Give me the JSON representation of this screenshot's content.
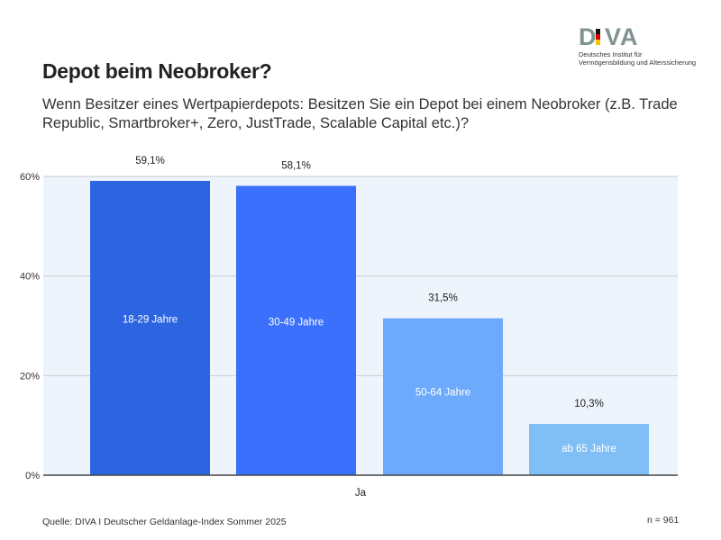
{
  "header": {
    "title": "Depot beim Neobroker?",
    "subtitle": "Wenn Besitzer eines Wertpapierdepots: Besitzen Sie ein Depot bei einem Neobroker (z.B. Trade Republic, Smartbroker+, Zero, JustTrade, Scalable Capital etc.)?"
  },
  "logo": {
    "word": "DIVA",
    "line1": "Deutsches Institut für",
    "line2": "Vermögensbildung und Alterssicherung"
  },
  "footer": {
    "source": "Quelle: DIVA I Deutscher Geldanlage-Index Sommer 2025",
    "n": "n = 961"
  },
  "chart_data": {
    "type": "bar",
    "categories": [
      "Ja"
    ],
    "series": [
      {
        "name": "18-29 Jahre",
        "values": [
          59.1
        ],
        "label": "59,1%",
        "color": "#2d64e1"
      },
      {
        "name": "30-49 Jahre",
        "values": [
          58.1
        ],
        "label": "58,1%",
        "color": "#3a70fb"
      },
      {
        "name": "50-64 Jahre",
        "values": [
          31.5
        ],
        "label": "31,5%",
        "color": "#6eaafc"
      },
      {
        "name": "ab 65 Jahre",
        "values": [
          10.3
        ],
        "label": "10,3%",
        "color": "#80bff5"
      }
    ],
    "yticks": [
      "0%",
      "20%",
      "40%",
      "60%"
    ],
    "ytick_values": [
      0,
      20,
      40,
      60
    ],
    "ylim": [
      0,
      60
    ],
    "grid": true,
    "plot_background": "#eef4fc"
  }
}
